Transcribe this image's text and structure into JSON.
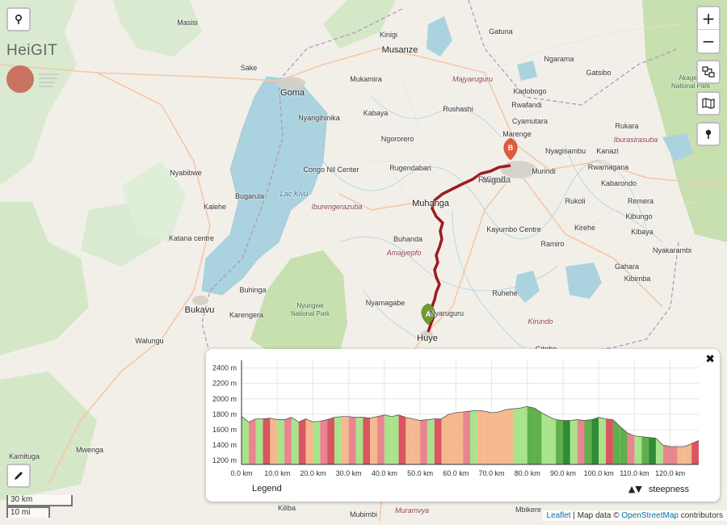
{
  "map": {
    "places": [
      {
        "name": "Masisi",
        "cls": ""
      },
      {
        "name": "Kinigi",
        "cls": ""
      },
      {
        "name": "Musanze",
        "cls": "big"
      },
      {
        "name": "Gatuna",
        "cls": ""
      },
      {
        "name": "Sake",
        "cls": ""
      },
      {
        "name": "Goma",
        "cls": "big"
      },
      {
        "name": "Mukamira",
        "cls": ""
      },
      {
        "name": "Majyaruguru",
        "cls": "region"
      },
      {
        "name": "Ngarama",
        "cls": ""
      },
      {
        "name": "Gatsibo",
        "cls": ""
      },
      {
        "name": "Kadobogo",
        "cls": ""
      },
      {
        "name": "Kabaya",
        "cls": ""
      },
      {
        "name": "Rushashi",
        "cls": ""
      },
      {
        "name": "Rwafandi",
        "cls": ""
      },
      {
        "name": "Nyangihinika",
        "cls": ""
      },
      {
        "name": "Cyamutara",
        "cls": ""
      },
      {
        "name": "Marenge",
        "cls": ""
      },
      {
        "name": "Ngororero",
        "cls": ""
      },
      {
        "name": "Kanazi",
        "cls": ""
      },
      {
        "name": "Nyagisambu",
        "cls": ""
      },
      {
        "name": "Rukara",
        "cls": ""
      },
      {
        "name": "Iburasirasuba",
        "cls": "region"
      },
      {
        "name": "Congo Nil Center",
        "cls": ""
      },
      {
        "name": "Rugendabari",
        "cls": ""
      },
      {
        "name": "Murindi",
        "cls": ""
      },
      {
        "name": "Rwamagana",
        "cls": ""
      },
      {
        "name": "Nyabibwe",
        "cls": ""
      },
      {
        "name": "Kigali",
        "cls": "big"
      },
      {
        "name": "Rwanda",
        "cls": "city"
      },
      {
        "name": "Kabarondo",
        "cls": ""
      },
      {
        "name": "Bugarula",
        "cls": ""
      },
      {
        "name": "Lac Kivu",
        "cls": "water"
      },
      {
        "name": "Muhanga",
        "cls": "big"
      },
      {
        "name": "Rukoli",
        "cls": ""
      },
      {
        "name": "Remera",
        "cls": ""
      },
      {
        "name": "Kalehe",
        "cls": ""
      },
      {
        "name": "Iburengerazuba",
        "cls": "region"
      },
      {
        "name": "Kibungo",
        "cls": ""
      },
      {
        "name": "Kayumbo Centre",
        "cls": ""
      },
      {
        "name": "Kirehe",
        "cls": ""
      },
      {
        "name": "Kibaya",
        "cls": ""
      },
      {
        "name": "Katana centre",
        "cls": ""
      },
      {
        "name": "Buhanda",
        "cls": ""
      },
      {
        "name": "Ramiro",
        "cls": ""
      },
      {
        "name": "Nyakarambi",
        "cls": ""
      },
      {
        "name": "Amajyepfo",
        "cls": "region"
      },
      {
        "name": "Gahara",
        "cls": ""
      },
      {
        "name": "Kibimba",
        "cls": ""
      },
      {
        "name": "Buhinga",
        "cls": ""
      },
      {
        "name": "Ruhehe",
        "cls": ""
      },
      {
        "name": "Bukavu",
        "cls": "big"
      },
      {
        "name": "Karengera",
        "cls": ""
      },
      {
        "name": "Nyamagabe",
        "cls": ""
      },
      {
        "name": "Nyungwe National Park",
        "cls": "park"
      },
      {
        "name": "Nyaruguru",
        "cls": ""
      },
      {
        "name": "Kirundo",
        "cls": "region"
      },
      {
        "name": "Walungu",
        "cls": ""
      },
      {
        "name": "Huye",
        "cls": "big"
      },
      {
        "name": "Gitobe",
        "cls": ""
      },
      {
        "name": "Kamituga",
        "cls": ""
      },
      {
        "name": "Mwenga",
        "cls": ""
      },
      {
        "name": "Kiliba",
        "cls": ""
      },
      {
        "name": "Mubimbi",
        "cls": ""
      },
      {
        "name": "Muramvya",
        "cls": "region"
      },
      {
        "name": "Mbikere",
        "cls": ""
      },
      {
        "name": "Akagera National Park",
        "cls": "park"
      }
    ],
    "markers": {
      "start": "A",
      "end": "B"
    },
    "colors": {
      "route": "#9b1c23",
      "start_marker": "#6f9c31",
      "end_marker": "#e05b3c",
      "lake": "#aad3df",
      "park": "#c8dfb0"
    }
  },
  "controls": {
    "zoom_in": "+",
    "zoom_out": "−",
    "pin_icon": "map-pin-icon",
    "layers_icon": "route-layers-icon",
    "map_icon": "folded-map-icon",
    "edit_icon": "pencil-icon"
  },
  "logo": {
    "text": "HeiGIT"
  },
  "scale": {
    "km": "30 km",
    "mi": "10 mi"
  },
  "attribution": {
    "leaflet": "Leaflet",
    "sep": " | Map data © ",
    "osm": "OpenStreetMap",
    "tail": " contributors"
  },
  "elevation": {
    "close": "✖",
    "legend_label": "Legend",
    "steepness_arrows": "▲▼",
    "steepness_label": "steepness",
    "chart_data": {
      "type": "area",
      "xlabel": "",
      "ylabel": "",
      "x_ticks": [
        "0.0 km",
        "10.0 km",
        "20.0 km",
        "30.0 km",
        "40.0 km",
        "50.0 km",
        "60.0 km",
        "70.0 km",
        "80.0 km",
        "90.0 km",
        "100.0 km",
        "110.0 km",
        "120.0 km"
      ],
      "y_ticks": [
        "1200 m",
        "1400 m",
        "1600 m",
        "1800 m",
        "2000 m",
        "2200 m",
        "2400 m"
      ],
      "xlim": [
        0,
        128
      ],
      "ylim": [
        1150,
        2500
      ],
      "grid": true,
      "profile": {
        "x": [
          0,
          2,
          4,
          6,
          8,
          10,
          12,
          14,
          16,
          18,
          20,
          22,
          24,
          26,
          28,
          30,
          32,
          34,
          36,
          38,
          40,
          42,
          44,
          46,
          48,
          50,
          52,
          54,
          56,
          58,
          60,
          62,
          64,
          66,
          68,
          70,
          72,
          74,
          76,
          78,
          80,
          82,
          84,
          86,
          88,
          90,
          92,
          94,
          96,
          98,
          100,
          102,
          104,
          106,
          108,
          110,
          112,
          114,
          116,
          118,
          120,
          122,
          124,
          126,
          128
        ],
        "y": [
          1770,
          1700,
          1740,
          1740,
          1750,
          1730,
          1730,
          1760,
          1700,
          1740,
          1700,
          1710,
          1730,
          1760,
          1770,
          1770,
          1760,
          1760,
          1750,
          1770,
          1790,
          1770,
          1790,
          1760,
          1740,
          1720,
          1730,
          1740,
          1740,
          1800,
          1820,
          1830,
          1840,
          1850,
          1840,
          1820,
          1830,
          1860,
          1870,
          1880,
          1900,
          1880,
          1820,
          1770,
          1730,
          1720,
          1720,
          1730,
          1720,
          1730,
          1760,
          1740,
          1730,
          1640,
          1560,
          1520,
          1510,
          1500,
          1490,
          1400,
          1380,
          1380,
          1380,
          1420,
          1460
        ]
      },
      "steepness_colors": [
        "#a9e38b",
        "#f5b98f",
        "#e8858f",
        "#d9555f",
        "#5fb04b",
        "#2e8b36"
      ]
    }
  }
}
